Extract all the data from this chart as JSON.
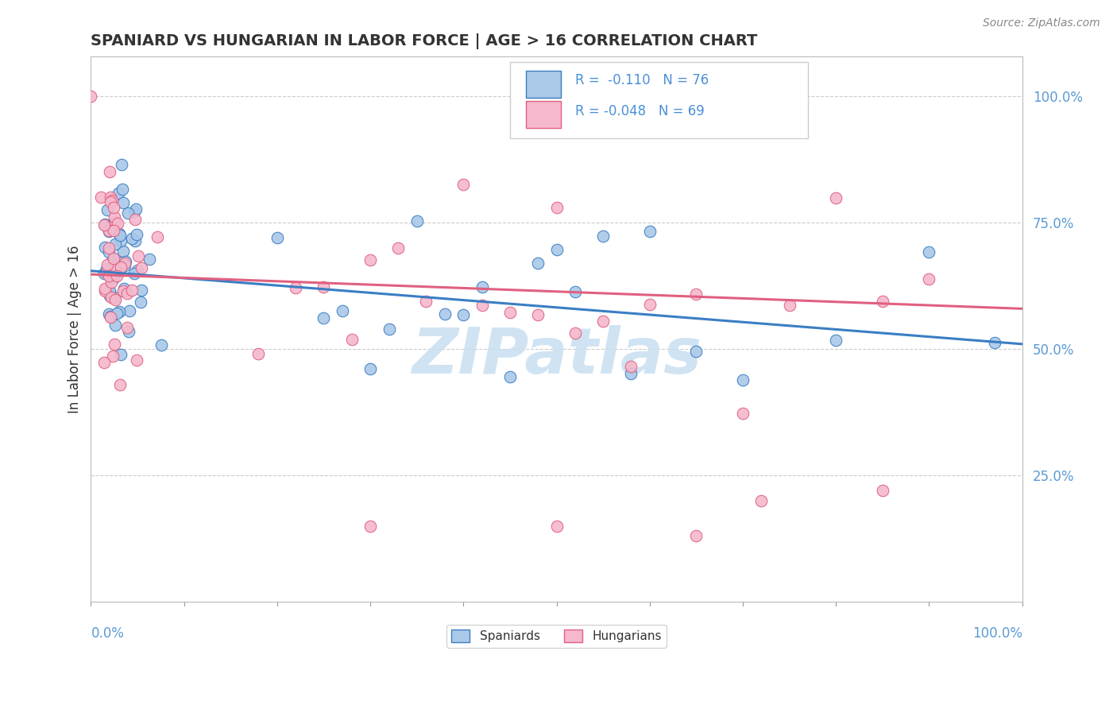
{
  "title": "SPANIARD VS HUNGARIAN IN LABOR FORCE | AGE > 16 CORRELATION CHART",
  "source_text": "Source: ZipAtlas.com",
  "ylabel": "In Labor Force | Age > 16",
  "legend_r_blue": "-0.110",
  "legend_n_blue": "76",
  "legend_r_pink": "-0.048",
  "legend_n_pink": "69",
  "blue_color": "#aac8e8",
  "pink_color": "#f5b8cc",
  "blue_line_color": "#3a7ec4",
  "pink_line_color": "#e06080",
  "title_color": "#333333",
  "axis_label_color": "#4a90d9",
  "watermark": "ZIPatlas",
  "watermark_color": "#c8dff0",
  "background_color": "#ffffff",
  "grid_color": "#cccccc",
  "tick_color": "#5b9bd5",
  "blue_intercept": 0.655,
  "blue_slope": -0.145,
  "pink_intercept": 0.648,
  "pink_slope": -0.068
}
